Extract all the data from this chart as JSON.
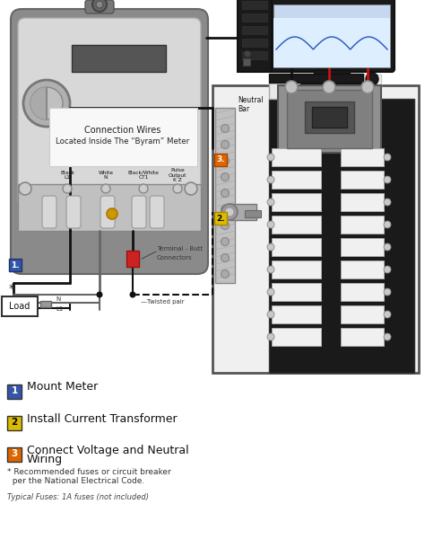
{
  "bg_color": "#ffffff",
  "meter_outer": "#8a8a8a",
  "meter_face": "#d0d0d0",
  "meter_white_panel": "#f0f0f0",
  "meter_dark": "#555555",
  "panel_bg": "#f2f2f2",
  "panel_dark": "#1e1e1e",
  "panel_border": "#555555",
  "neutral_bar": "#b8b8b8",
  "breaker_gray": "#888888",
  "wire_black": "#111111",
  "wire_red": "#cc1111",
  "wire_gray": "#666666",
  "label1_color": "#3355aa",
  "label2_color": "#ddbb00",
  "label3_color": "#dd6600",
  "legend": [
    {
      "num": "1",
      "color": "#3355aa",
      "text": "Mount Meter",
      "tc": "#ffffff"
    },
    {
      "num": "2",
      "color": "#ddbb00",
      "text": "Install Current Transformer",
      "tc": "#000000"
    },
    {
      "num": "3",
      "color": "#dd6600",
      "text": "Connect Voltage and Neutral\nWiring",
      "tc": "#ffffff"
    }
  ],
  "footnote1": "* Recommended fuses or circuit breaker",
  "footnote2": "  per the National Electrical Code.",
  "footnote3": "Typical Fuses: 1A fuses (not included)"
}
